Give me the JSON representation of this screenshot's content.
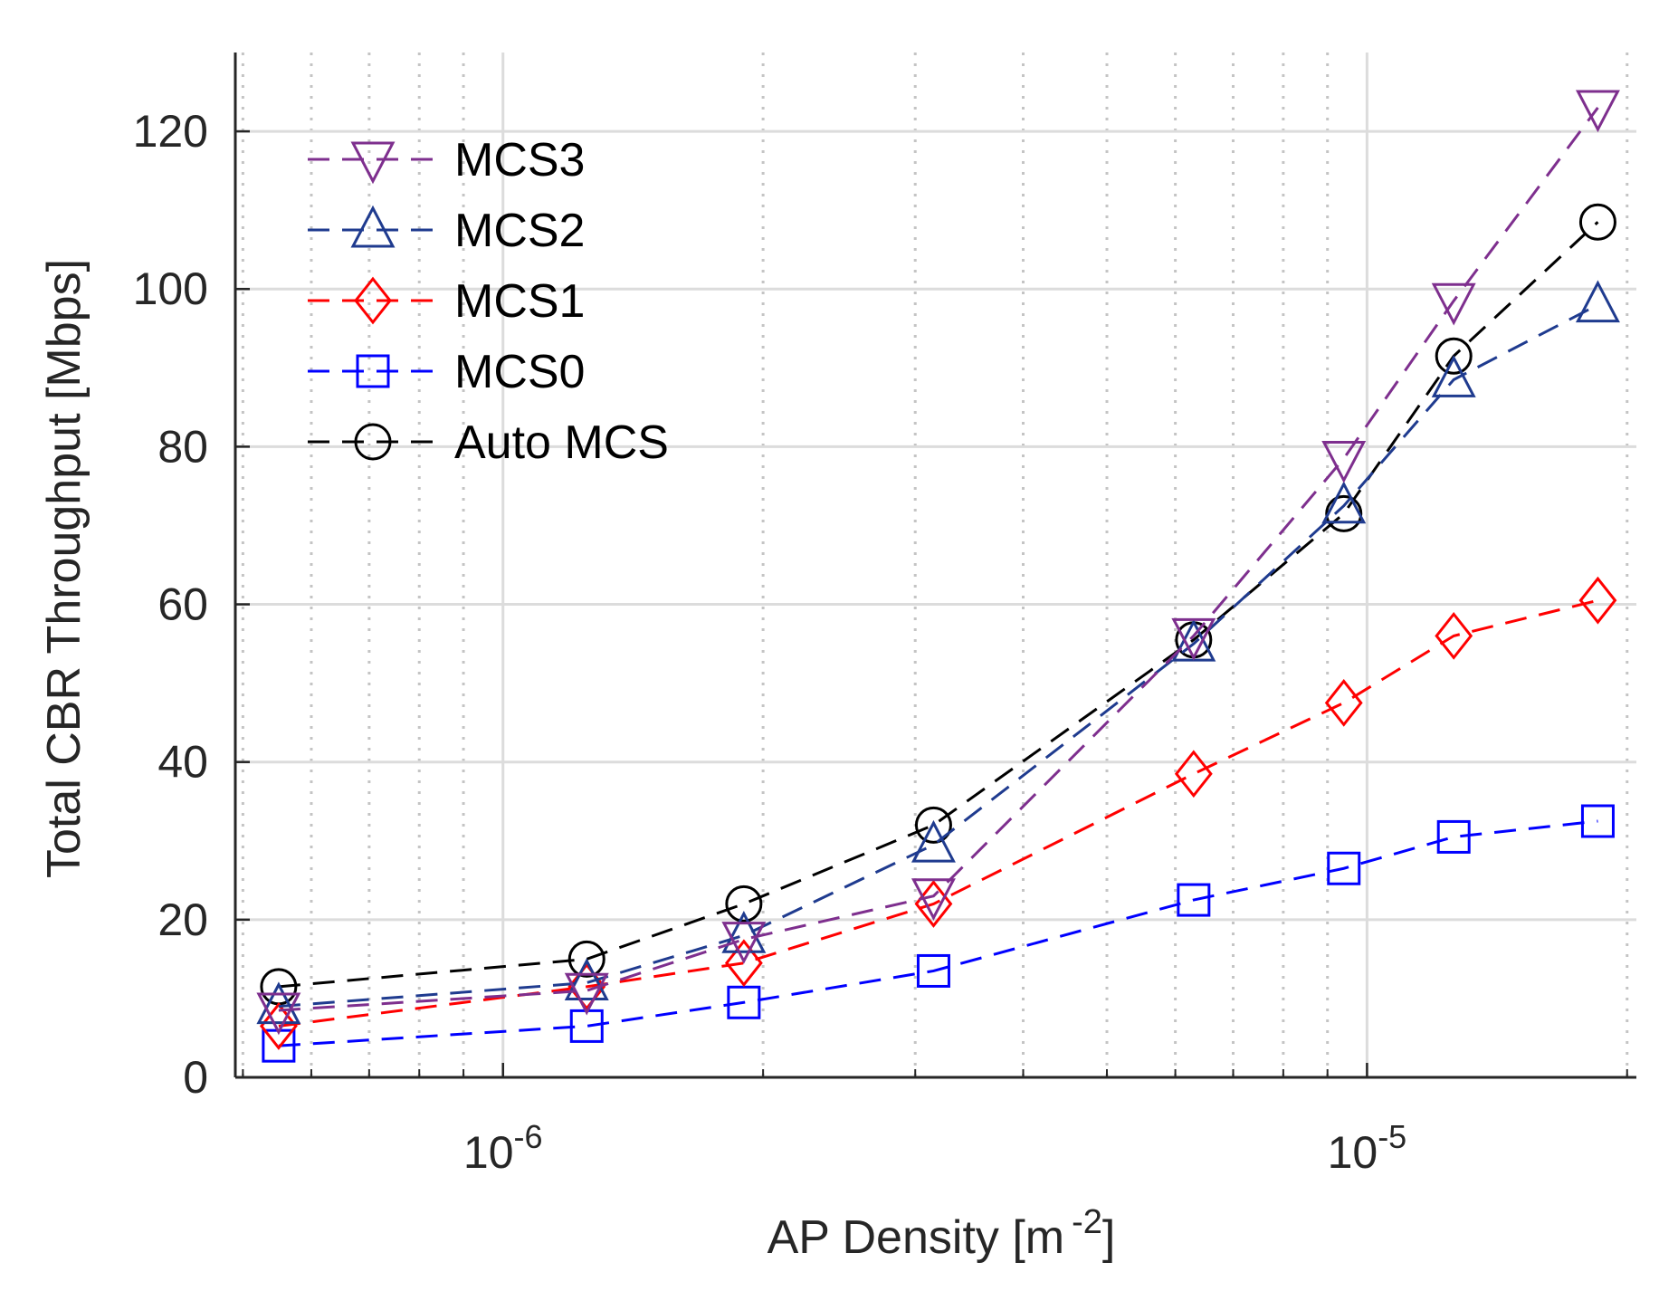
{
  "chart_data": {
    "type": "line",
    "title": "",
    "xlabel": "AP Density [m",
    "xlabel_exponent": "-2",
    "xlabel_suffix": "]",
    "ylabel": "Total CBR Throughput [Mbps]",
    "xscale": "log",
    "xlim": [
      4.9e-07,
      2.05e-05
    ],
    "ylim": [
      0,
      130
    ],
    "yticks": [
      0,
      20,
      40,
      60,
      80,
      100,
      120
    ],
    "ytick_labels": [
      "0",
      "20",
      "40",
      "60",
      "80",
      "100",
      "120"
    ],
    "xticks": [
      {
        "value": 1e-06,
        "base": "10",
        "exponent": "-6"
      },
      {
        "value": 1e-05,
        "base": "10",
        "exponent": "-5"
      }
    ],
    "grid": true,
    "legend_position": "top-left",
    "x": [
      5.5e-07,
      1.25e-06,
      1.9e-06,
      3.15e-06,
      6.3e-06,
      9.4e-06,
      1.26e-05,
      1.85e-05
    ],
    "series": [
      {
        "name": "MCS3",
        "color": "#7e2f8e",
        "marker": "triangle-down",
        "values": [
          8.5,
          11,
          17.5,
          23,
          56,
          78.5,
          98.5,
          123
        ]
      },
      {
        "name": "MCS2",
        "color": "#1f3b8f",
        "marker": "triangle-up",
        "values": [
          9,
          12,
          18,
          29.5,
          55,
          72.5,
          88.5,
          98
        ]
      },
      {
        "name": "MCS1",
        "color": "#ff0000",
        "marker": "diamond",
        "values": [
          6.5,
          11.5,
          14.5,
          22,
          38.5,
          47.5,
          56,
          60.5
        ]
      },
      {
        "name": "MCS0",
        "color": "#0000ff",
        "marker": "square",
        "values": [
          4,
          6.5,
          9.5,
          13.5,
          22.5,
          26.5,
          30.5,
          32.5
        ]
      },
      {
        "name": "Auto MCS",
        "color": "#000000",
        "marker": "circle",
        "values": [
          11.5,
          15,
          22,
          32,
          55.5,
          71.5,
          91.5,
          108.5
        ]
      }
    ]
  }
}
